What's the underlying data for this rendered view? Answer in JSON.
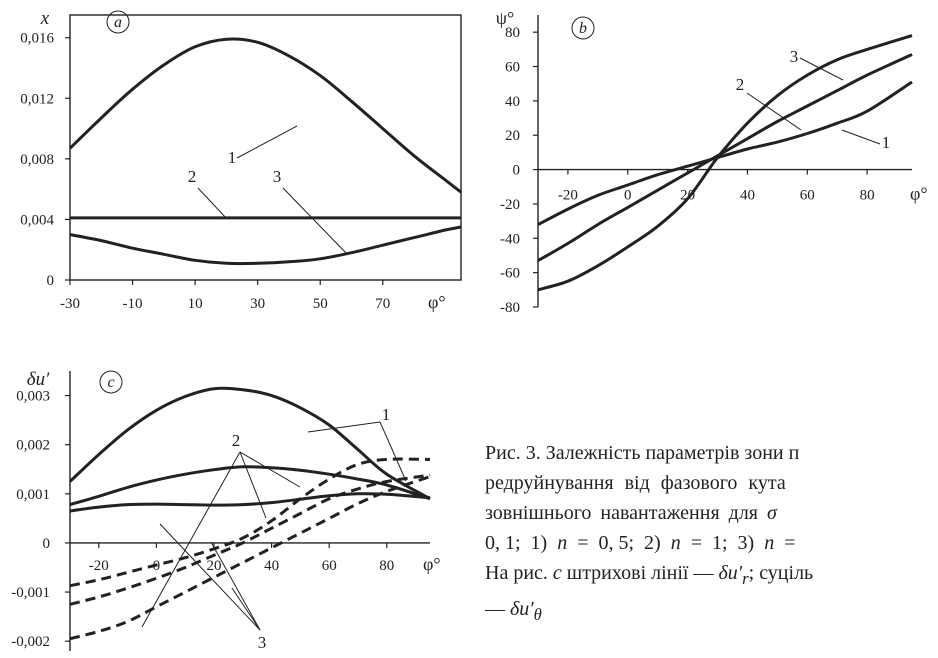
{
  "chart_data": [
    {
      "type": "line",
      "panel_label": "a",
      "ylabel": "x",
      "xlabel": "φ°",
      "x_ticks": [
        "-30",
        "-10",
        "10",
        "30",
        "50",
        "70"
      ],
      "y_ticks": [
        "0",
        "0,004",
        "0,008",
        "0,012",
        "0,016"
      ],
      "xlim": [
        -30,
        95
      ],
      "ylim": [
        0,
        0.0175
      ],
      "series": [
        {
          "label": "1",
          "x": [
            -30,
            -20,
            -10,
            0,
            10,
            20,
            30,
            40,
            50,
            60,
            70,
            80,
            90,
            95
          ],
          "y": [
            0.0087,
            0.0107,
            0.0126,
            0.0142,
            0.0154,
            0.0159,
            0.0157,
            0.0148,
            0.0135,
            0.0118,
            0.01,
            0.0082,
            0.0066,
            0.0058
          ]
        },
        {
          "label": "2",
          "x": [
            -30,
            95
          ],
          "y": [
            0.0041,
            0.0041
          ]
        },
        {
          "label": "3",
          "x": [
            -30,
            -20,
            -10,
            0,
            10,
            20,
            30,
            40,
            50,
            60,
            70,
            80,
            90,
            95
          ],
          "y": [
            0.003,
            0.0026,
            0.0021,
            0.0017,
            0.0013,
            0.0011,
            0.0011,
            0.0012,
            0.0014,
            0.0018,
            0.0023,
            0.0028,
            0.0033,
            0.0035
          ]
        }
      ]
    },
    {
      "type": "line",
      "panel_label": "b",
      "ylabel": "ψ°",
      "xlabel": "φ°",
      "x_ticks": [
        "-20",
        "0",
        "20",
        "40",
        "60",
        "80"
      ],
      "y_ticks": [
        "-80",
        "-60",
        "-40",
        "-20",
        "0",
        "20",
        "40",
        "60",
        "80"
      ],
      "xlim": [
        -30,
        95
      ],
      "ylim": [
        -80,
        90
      ],
      "series": [
        {
          "label": "1",
          "x": [
            -30,
            -20,
            -10,
            0,
            10,
            20,
            30,
            40,
            50,
            60,
            70,
            80,
            95
          ],
          "y": [
            -32,
            -23,
            -15,
            -9,
            -3,
            2,
            7,
            12,
            16,
            21,
            27,
            34,
            51
          ]
        },
        {
          "label": "2",
          "x": [
            -30,
            -20,
            -10,
            0,
            10,
            20,
            30,
            40,
            50,
            60,
            70,
            80,
            95
          ],
          "y": [
            -53,
            -43,
            -32,
            -22,
            -12,
            -2,
            8,
            18,
            28,
            37,
            46,
            55,
            67
          ]
        },
        {
          "label": "3",
          "x": [
            -30,
            -20,
            -10,
            0,
            10,
            20,
            30,
            40,
            50,
            60,
            70,
            80,
            95
          ],
          "y": [
            -70,
            -65,
            -56,
            -45,
            -33,
            -17,
            7,
            27,
            43,
            55,
            64,
            70,
            78
          ]
        }
      ]
    },
    {
      "type": "line",
      "panel_label": "c",
      "ylabel": "δu′",
      "xlabel": "φ°",
      "x_ticks": [
        "-20",
        "0",
        "20",
        "40",
        "60",
        "80"
      ],
      "y_ticks": [
        "-0,002",
        "-0,001",
        "0",
        "0,001",
        "0,002",
        "0,003"
      ],
      "xlim": [
        -30,
        95
      ],
      "ylim": [
        -0.0022,
        0.0035
      ],
      "series": [
        {
          "group": "1",
          "style": "solid",
          "x": [
            -30,
            -20,
            -10,
            0,
            10,
            20,
            30,
            40,
            50,
            60,
            70,
            80,
            95
          ],
          "y": [
            0.00125,
            0.0018,
            0.0023,
            0.0027,
            0.00298,
            0.00314,
            0.00312,
            0.003,
            0.00275,
            0.0024,
            0.0019,
            0.0014,
            0.0009
          ]
        },
        {
          "group": "2",
          "style": "solid",
          "x": [
            -30,
            -20,
            -10,
            0,
            10,
            20,
            30,
            40,
            50,
            60,
            70,
            80,
            95
          ],
          "y": [
            0.00078,
            0.00095,
            0.00113,
            0.00128,
            0.0014,
            0.00149,
            0.00155,
            0.00153,
            0.00148,
            0.0014,
            0.0013,
            0.00118,
            0.0009
          ]
        },
        {
          "group": "3",
          "style": "solid",
          "x": [
            -30,
            -20,
            -10,
            0,
            10,
            20,
            30,
            40,
            50,
            60,
            70,
            80,
            95
          ],
          "y": [
            0.00065,
            0.00073,
            0.00078,
            0.00079,
            0.00078,
            0.00077,
            0.00078,
            0.00082,
            0.00089,
            0.00096,
            0.001,
            0.00099,
            0.00092
          ]
        },
        {
          "group": "1",
          "style": "dashed",
          "x": [
            -30,
            -20,
            -10,
            0,
            10,
            20,
            30,
            40,
            50,
            60,
            70,
            80,
            95
          ],
          "y": [
            -0.00087,
            -0.00075,
            -0.0006,
            -0.00045,
            -0.0003,
            -0.00012,
            0.0001,
            0.00045,
            0.0009,
            0.0013,
            0.0016,
            0.0017,
            0.0017
          ]
        },
        {
          "group": "2",
          "style": "dashed",
          "x": [
            -30,
            -20,
            -10,
            0,
            10,
            20,
            30,
            40,
            50,
            60,
            70,
            80,
            95
          ],
          "y": [
            -0.00125,
            -0.0011,
            -0.00092,
            -0.00072,
            -0.0005,
            -0.00025,
            0.0,
            0.0003,
            0.0006,
            0.0009,
            0.0011,
            0.00125,
            0.00138
          ]
        },
        {
          "group": "3",
          "style": "dashed",
          "x": [
            -30,
            -20,
            -10,
            0,
            10,
            20,
            30,
            40,
            50,
            60,
            70,
            80,
            95
          ],
          "y": [
            -0.00195,
            -0.0018,
            -0.0016,
            -0.0013,
            -0.001,
            -0.0007,
            -0.0004,
            -0.0001,
            0.0002,
            0.0005,
            0.0008,
            0.00105,
            0.00135
          ]
        }
      ],
      "callout_labels": [
        "1",
        "2",
        "3"
      ]
    }
  ],
  "caption": {
    "line1": "Рис. 3. Залежність параметрів зони п",
    "line2": "редруйнування від фазового кута",
    "line3_text": "зовнішнього навантаження для ",
    "line3_sym": "σ",
    "line4_a": "0, 1;  1)  ",
    "line4_n1": "n",
    "line4_b": "  =  0, 5;  2)  ",
    "line4_n2": "n",
    "line4_c": "  =  1;  3)  ",
    "line4_n3": "n",
    "line4_d": "  =",
    "line5_a": "На рис. ",
    "line5_c": "c",
    "line5_b": " штрихові лінії — ",
    "line5_sym1": "δu′",
    "line5_sub1": "r",
    "line5_d": "; суціль",
    "line6_a": "— ",
    "line6_sym": "δu′",
    "line6_sub": "θ"
  }
}
